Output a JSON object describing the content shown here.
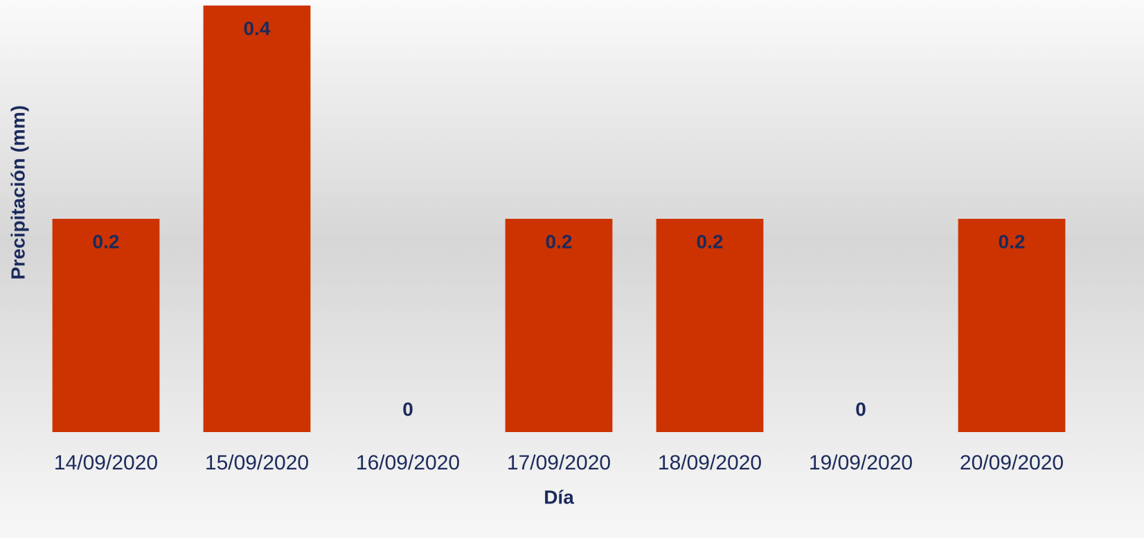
{
  "chart_data": {
    "type": "bar",
    "x_label": "Día",
    "y_label": "Precipitación (mm)",
    "categories": [
      "14/09/2020",
      "15/09/2020",
      "16/09/2020",
      "17/09/2020",
      "18/09/2020",
      "19/09/2020",
      "20/09/2020"
    ],
    "values": [
      0.2,
      0.4,
      0,
      0.2,
      0.2,
      0,
      0.2
    ],
    "color": "#cc3300",
    "label_color": "#1b2a5c",
    "ylim": [
      0,
      0.4
    ],
    "grid": false
  }
}
